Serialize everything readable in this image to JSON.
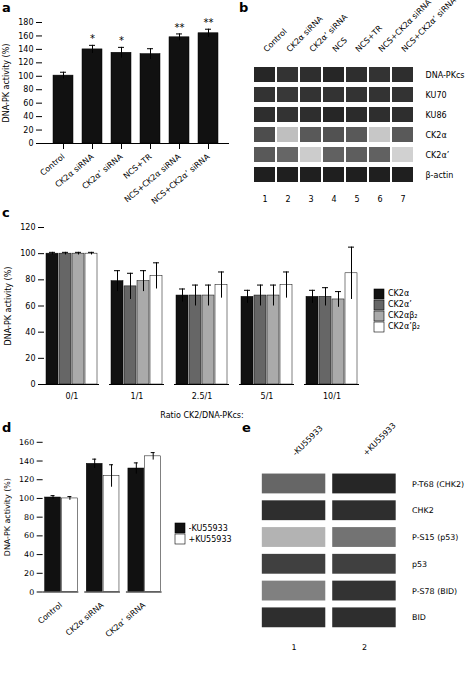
{
  "chart_data": [
    {
      "type": "bar",
      "title": "a",
      "categories": [
        "Control",
        "CK2α siRNA",
        "CK2α’ siRNA",
        "NCS+TR",
        "NCS+CK2α siRNA",
        "NCS+CK2α’ siRNA"
      ],
      "values": [
        101,
        140,
        135,
        133,
        158,
        164
      ],
      "errors": [
        5,
        6,
        8,
        8,
        5,
        6
      ],
      "annotations": [
        null,
        "*",
        "*",
        null,
        "**",
        "**"
      ],
      "color": "#111111",
      "ylabel": "DNA-PK activity (%)",
      "ylim": [
        0,
        180
      ],
      "yticks": [
        0,
        20,
        40,
        60,
        80,
        100,
        120,
        140,
        160,
        180
      ]
    },
    {
      "type": "heatmap",
      "title": "b",
      "categories": [
        "Control",
        "CK2α siRNA",
        "CK2α’ siRNA",
        "NCS",
        "NCS+TR",
        "NCS+CK2α siRNA",
        "NCS+CK2α’ siRNA"
      ],
      "lane_numbers": [
        1,
        2,
        3,
        4,
        5,
        6,
        7
      ],
      "rows": [
        "DNA-PKcs",
        "KU70",
        "KU86",
        "CK2α",
        "CK2α’",
        "β-actin"
      ],
      "cells": [
        [
          0.85,
          0.8,
          0.82,
          0.85,
          0.82,
          0.8,
          0.82
        ],
        [
          0.8,
          0.78,
          0.8,
          0.8,
          0.8,
          0.8,
          0.8
        ],
        [
          0.82,
          0.8,
          0.82,
          0.85,
          0.83,
          0.82,
          0.82
        ],
        [
          0.7,
          0.25,
          0.65,
          0.68,
          0.65,
          0.22,
          0.65
        ],
        [
          0.65,
          0.6,
          0.2,
          0.62,
          0.63,
          0.62,
          0.18
        ],
        [
          0.88,
          0.88,
          0.88,
          0.88,
          0.88,
          0.88,
          0.88
        ]
      ],
      "clim": [
        0,
        1
      ]
    },
    {
      "type": "bar",
      "title": "c",
      "categories": [
        "0/1",
        "1/1",
        "2.5/1",
        "5/1",
        "10/1"
      ],
      "series": [
        {
          "name": "CK2α",
          "color": "#111111",
          "values": [
            100,
            79,
            68,
            67,
            67
          ],
          "errors": [
            1,
            8,
            5,
            5,
            5
          ]
        },
        {
          "name": "CK2α’",
          "color": "#666666",
          "values": [
            100,
            75,
            68,
            68,
            67
          ],
          "errors": [
            1,
            10,
            8,
            8,
            7
          ]
        },
        {
          "name": "CK2αβ₂",
          "color": "#aaaaaa",
          "values": [
            100,
            79,
            68,
            68,
            65
          ],
          "errors": [
            1,
            8,
            8,
            8,
            6
          ]
        },
        {
          "name": "CK2α’β₂",
          "color": "#ffffff",
          "values": [
            100,
            83,
            76,
            76,
            85
          ],
          "errors": [
            1,
            10,
            10,
            10,
            20
          ]
        }
      ],
      "xlabel": "Ratio CK2/DNA-PKcs:",
      "ylabel": "DNA-PK activity (%)",
      "ylim": [
        0,
        120
      ],
      "yticks": [
        0,
        20,
        40,
        60,
        80,
        100,
        120
      ],
      "legend": "right"
    },
    {
      "type": "bar",
      "title": "d",
      "categories": [
        "Control",
        "CK2α siRNA",
        "CK2α’ siRNA"
      ],
      "series": [
        {
          "name": "-KU55933",
          "color": "#111111",
          "values": [
            101,
            137,
            132
          ],
          "errors": [
            2,
            5,
            6
          ]
        },
        {
          "name": "+KU55933",
          "color": "#ffffff",
          "values": [
            100,
            124,
            145
          ],
          "errors": [
            2,
            12,
            4
          ]
        }
      ],
      "ylabel": "DNA-PK activity (%)",
      "ylim": [
        0,
        160
      ],
      "yticks": [
        0,
        20,
        40,
        60,
        80,
        100,
        120,
        140,
        160
      ],
      "legend": "right"
    },
    {
      "type": "heatmap",
      "title": "e",
      "categories": [
        "-KU55933",
        "+KU55933"
      ],
      "lane_numbers": [
        1,
        2
      ],
      "rows": [
        "P-T68 (CHK2)",
        "CHK2",
        "P-S15 (p53)",
        "p53",
        "P-S78 (BID)",
        "BID"
      ],
      "cells": [
        [
          0.6,
          0.85
        ],
        [
          0.82,
          0.82
        ],
        [
          0.3,
          0.55
        ],
        [
          0.75,
          0.75
        ],
        [
          0.5,
          0.8
        ],
        [
          0.82,
          0.82
        ]
      ],
      "clim": [
        0,
        1
      ]
    }
  ]
}
